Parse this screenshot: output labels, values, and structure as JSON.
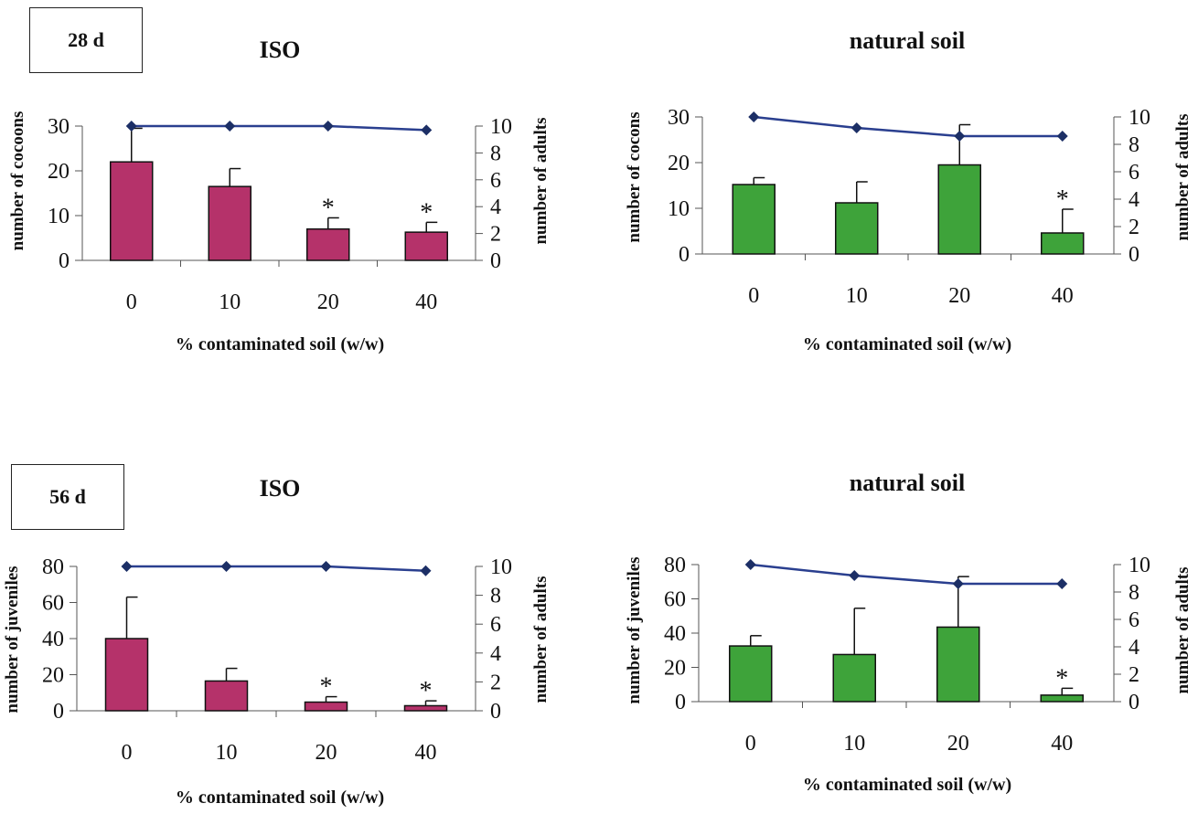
{
  "periods": [
    "28 d",
    "56 d"
  ],
  "colors": {
    "iso_bar": "#b5326a",
    "natural_bar": "#3ea33a",
    "adults_line": "#2a3f8f",
    "marker": "#1c2f66"
  },
  "chart_data": [
    {
      "id": "28d-iso",
      "type": "bar",
      "title": "ISO",
      "xlabel": "% contaminated soil (w/w)",
      "ylabel": "number of cocoons",
      "y2label": "number of adults",
      "categories": [
        "0",
        "10",
        "20",
        "40"
      ],
      "ylim": [
        0,
        30
      ],
      "yticks": [
        "0",
        "10",
        "20",
        "30"
      ],
      "y2lim": [
        0,
        10
      ],
      "y2ticks": [
        "0",
        "2",
        "4",
        "6",
        "8",
        "10"
      ],
      "series": [
        {
          "kind": "bar",
          "values": [
            22,
            16.5,
            7,
            6.3
          ],
          "errors": [
            7.5,
            4,
            2.5,
            2.2
          ],
          "significant": [
            false,
            false,
            true,
            true
          ]
        },
        {
          "kind": "line",
          "axis": "right",
          "values": [
            10,
            10,
            10,
            9.7
          ]
        }
      ],
      "marker_symbol": "*"
    },
    {
      "id": "28d-natural",
      "type": "bar",
      "title": "natural soil",
      "xlabel": "% contaminated soil (w/w)",
      "ylabel": "number of cocons",
      "y2label": "number of adults",
      "categories": [
        "0",
        "10",
        "20",
        "40"
      ],
      "ylim": [
        0,
        30
      ],
      "yticks": [
        "0",
        "10",
        "20",
        "30"
      ],
      "y2lim": [
        0,
        10
      ],
      "y2ticks": [
        "0",
        "2",
        "4",
        "6",
        "8",
        "10"
      ],
      "series": [
        {
          "kind": "bar",
          "values": [
            15.2,
            11.2,
            19.5,
            4.6
          ],
          "errors": [
            1.5,
            4.6,
            8.8,
            5.2
          ],
          "significant": [
            false,
            false,
            false,
            true
          ]
        },
        {
          "kind": "line",
          "axis": "right",
          "values": [
            10,
            9.2,
            8.6,
            8.6
          ]
        }
      ],
      "marker_symbol": "*"
    },
    {
      "id": "56d-iso",
      "type": "bar",
      "title": "ISO",
      "xlabel": "% contaminated soil (w/w)",
      "ylabel": "number of juveniles",
      "y2label": "number of adults",
      "categories": [
        "0",
        "10",
        "20",
        "40"
      ],
      "ylim": [
        0,
        80
      ],
      "yticks": [
        "0",
        "20",
        "40",
        "60",
        "80"
      ],
      "y2lim": [
        0,
        10
      ],
      "y2ticks": [
        "0",
        "2",
        "4",
        "6",
        "8",
        "10"
      ],
      "series": [
        {
          "kind": "bar",
          "values": [
            40,
            16.5,
            4.8,
            2.8
          ],
          "errors": [
            23,
            7,
            3,
            2.7
          ],
          "significant": [
            false,
            false,
            true,
            true
          ]
        },
        {
          "kind": "line",
          "axis": "right",
          "values": [
            10,
            10,
            10,
            9.7
          ]
        }
      ],
      "marker_symbol": "*"
    },
    {
      "id": "56d-natural",
      "type": "bar",
      "title": "natural soil",
      "xlabel": "% contaminated soil (w/w)",
      "ylabel": "number of juveniles",
      "y2label": "number of adults",
      "categories": [
        "0",
        "10",
        "20",
        "40"
      ],
      "ylim": [
        0,
        80
      ],
      "yticks": [
        "0",
        "20",
        "40",
        "60",
        "80"
      ],
      "y2lim": [
        0,
        10
      ],
      "y2ticks": [
        "0",
        "2",
        "4",
        "6",
        "8",
        "10"
      ],
      "series": [
        {
          "kind": "bar",
          "values": [
            32.5,
            27.5,
            43.5,
            3.8
          ],
          "errors": [
            6,
            27,
            29.5,
            4
          ],
          "significant": [
            false,
            false,
            false,
            true
          ]
        },
        {
          "kind": "line",
          "axis": "right",
          "values": [
            10,
            9.2,
            8.6,
            8.6
          ]
        }
      ],
      "marker_symbol": "*"
    }
  ]
}
